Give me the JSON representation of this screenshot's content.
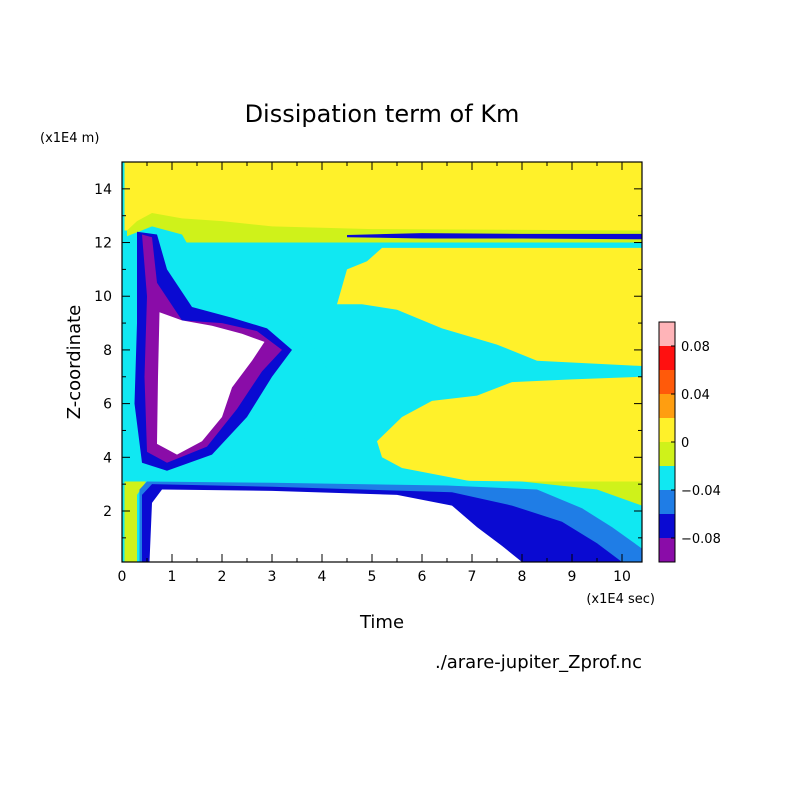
{
  "chart_data": {
    "type": "heatmap",
    "title": "Dissipation term of Km",
    "xlabel": "Time",
    "ylabel": "Z-coordinate",
    "x_unit": "(x1E4 sec)",
    "y_unit": "(x1E4 m)",
    "source_file": "./arare-jupiter_Zprof.nc",
    "xlim": [
      0,
      10.4
    ],
    "ylim": [
      0.1,
      15
    ],
    "x_ticks": [
      0,
      1,
      2,
      3,
      4,
      5,
      6,
      7,
      8,
      9,
      10
    ],
    "y_ticks": [
      2,
      4,
      6,
      8,
      10,
      12,
      14
    ],
    "colorbar": {
      "levels": [
        -0.1,
        -0.08,
        -0.06,
        -0.04,
        -0.02,
        0,
        0.02,
        0.04,
        0.06,
        0.08,
        0.1
      ],
      "colors": [
        "#8a0ca8",
        "#0a0ad2",
        "#1f7de6",
        "#10e8f2",
        "#cff21a",
        "#fff12a",
        "#ff9e10",
        "#ff5a0a",
        "#ff1010",
        "#ffb4b8"
      ],
      "tick_labels": [
        "0.08",
        "0.04",
        "0",
        "−0.04",
        "−0.08"
      ],
      "tick_values": [
        0.08,
        0.04,
        0,
        -0.04,
        -0.08
      ]
    },
    "regions": [
      {
        "name": "upper-positive",
        "level": 0.01,
        "poly": [
          [
            0.05,
            12.45
          ],
          [
            10.4,
            12.45
          ],
          [
            10.4,
            15
          ],
          [
            0.05,
            15
          ]
        ]
      },
      {
        "name": "upper-plume",
        "level": -0.01,
        "poly": [
          [
            0.1,
            12.45
          ],
          [
            0.3,
            12.8
          ],
          [
            0.6,
            13.1
          ],
          [
            1.2,
            12.9
          ],
          [
            2.0,
            12.8
          ],
          [
            3.0,
            12.6
          ],
          [
            4.0,
            12.55
          ],
          [
            5.0,
            12.5
          ],
          [
            10.4,
            12.45
          ],
          [
            10.4,
            12.0
          ],
          [
            0.1,
            12.0
          ]
        ]
      },
      {
        "name": "upper-ridge",
        "level": -0.07,
        "poly": [
          [
            4.5,
            12.28
          ],
          [
            6.0,
            12.35
          ],
          [
            8.0,
            12.32
          ],
          [
            10.4,
            12.32
          ],
          [
            10.4,
            12.12
          ],
          [
            8.0,
            12.15
          ],
          [
            6.0,
            12.15
          ],
          [
            4.5,
            12.2
          ]
        ]
      },
      {
        "name": "core-turbulent",
        "level": -0.03,
        "poly": [
          [
            0.05,
            12.2
          ],
          [
            0.6,
            12.6
          ],
          [
            1.2,
            12.3
          ],
          [
            1.6,
            11.0
          ],
          [
            2.2,
            10.5
          ],
          [
            3.0,
            9.5
          ],
          [
            3.8,
            8.2
          ],
          [
            4.2,
            7.0
          ],
          [
            3.6,
            4.5
          ],
          [
            2.0,
            3.5
          ],
          [
            0.4,
            3.2
          ],
          [
            0.05,
            3.5
          ]
        ]
      },
      {
        "name": "core-strong",
        "level": -0.07,
        "poly": [
          [
            0.3,
            12.4
          ],
          [
            0.7,
            12.3
          ],
          [
            0.9,
            11.0
          ],
          [
            1.4,
            9.6
          ],
          [
            2.2,
            9.2
          ],
          [
            2.9,
            8.8
          ],
          [
            3.4,
            8.0
          ],
          [
            3.0,
            7.0
          ],
          [
            2.5,
            5.5
          ],
          [
            1.8,
            4.1
          ],
          [
            0.9,
            3.5
          ],
          [
            0.4,
            3.8
          ],
          [
            0.25,
            6.0
          ],
          [
            0.3,
            9.0
          ]
        ]
      },
      {
        "name": "core-very-strong",
        "level": -0.09,
        "poly": [
          [
            0.4,
            12.3
          ],
          [
            0.6,
            12.2
          ],
          [
            0.7,
            10.5
          ],
          [
            1.2,
            9.1
          ],
          [
            2.0,
            9.0
          ],
          [
            2.7,
            8.7
          ],
          [
            3.2,
            8.0
          ],
          [
            2.8,
            7.2
          ],
          [
            2.3,
            5.8
          ],
          [
            1.7,
            4.4
          ],
          [
            0.9,
            3.8
          ],
          [
            0.5,
            4.2
          ],
          [
            0.45,
            7.0
          ],
          [
            0.5,
            10.0
          ]
        ]
      },
      {
        "name": "core-saturated",
        "level": -0.12,
        "poly": [
          [
            0.75,
            9.4
          ],
          [
            1.2,
            9.1
          ],
          [
            1.8,
            8.9
          ],
          [
            2.4,
            8.6
          ],
          [
            2.85,
            8.3
          ],
          [
            2.6,
            7.6
          ],
          [
            2.2,
            6.6
          ],
          [
            2.0,
            5.5
          ],
          [
            1.6,
            4.6
          ],
          [
            1.1,
            4.1
          ],
          [
            0.7,
            4.5
          ],
          [
            0.72,
            7.0
          ]
        ]
      },
      {
        "name": "mid-positive-a",
        "level": 0.01,
        "poly": [
          [
            4.3,
            9.7
          ],
          [
            4.5,
            11.0
          ],
          [
            4.9,
            11.3
          ],
          [
            5.2,
            11.8
          ],
          [
            10.4,
            11.8
          ],
          [
            10.4,
            7.4
          ],
          [
            8.3,
            7.6
          ],
          [
            7.5,
            8.2
          ],
          [
            6.4,
            8.8
          ],
          [
            5.5,
            9.5
          ],
          [
            4.8,
            9.7
          ]
        ]
      },
      {
        "name": "mid-positive-b",
        "level": 0.01,
        "poly": [
          [
            5.1,
            4.6
          ],
          [
            5.6,
            5.5
          ],
          [
            6.2,
            6.1
          ],
          [
            7.1,
            6.3
          ],
          [
            7.8,
            6.8
          ],
          [
            9.0,
            6.9
          ],
          [
            10.4,
            7.0
          ],
          [
            10.4,
            3.0
          ],
          [
            7.0,
            3.1
          ],
          [
            5.6,
            3.6
          ],
          [
            5.2,
            4.0
          ]
        ]
      },
      {
        "name": "surface-layer",
        "level": -0.01,
        "poly": [
          [
            0.05,
            0.1
          ],
          [
            10.4,
            0.1
          ],
          [
            10.4,
            3.1
          ],
          [
            0.05,
            3.1
          ]
        ]
      },
      {
        "name": "surface-mid",
        "level": -0.03,
        "poly": [
          [
            0.3,
            0.1
          ],
          [
            10.4,
            0.1
          ],
          [
            10.4,
            2.2
          ],
          [
            9.5,
            2.8
          ],
          [
            8.0,
            3.1
          ],
          [
            6.0,
            3.15
          ],
          [
            3.0,
            3.2
          ],
          [
            0.5,
            3.15
          ],
          [
            0.3,
            2.6
          ]
        ]
      },
      {
        "name": "surface-strong",
        "level": -0.05,
        "poly": [
          [
            0.35,
            0.1
          ],
          [
            10.4,
            0.1
          ],
          [
            10.4,
            0.6
          ],
          [
            9.8,
            1.4
          ],
          [
            9.2,
            2.1
          ],
          [
            8.3,
            2.8
          ],
          [
            6.5,
            2.95
          ],
          [
            3.0,
            3.05
          ],
          [
            0.5,
            3.1
          ],
          [
            0.35,
            2.8
          ]
        ]
      },
      {
        "name": "surface-very-strong",
        "level": -0.07,
        "poly": [
          [
            0.4,
            0.1
          ],
          [
            10.0,
            0.1
          ],
          [
            9.5,
            0.8
          ],
          [
            8.8,
            1.6
          ],
          [
            7.8,
            2.2
          ],
          [
            6.6,
            2.7
          ],
          [
            3.0,
            2.9
          ],
          [
            0.6,
            3.0
          ],
          [
            0.4,
            2.6
          ]
        ]
      },
      {
        "name": "surface-saturated",
        "level": -0.12,
        "poly": [
          [
            0.55,
            0.1
          ],
          [
            8.0,
            0.1
          ],
          [
            7.6,
            0.7
          ],
          [
            7.1,
            1.4
          ],
          [
            6.6,
            2.2
          ],
          [
            5.5,
            2.6
          ],
          [
            3.0,
            2.75
          ],
          [
            0.8,
            2.8
          ],
          [
            0.6,
            2.3
          ]
        ]
      }
    ]
  }
}
